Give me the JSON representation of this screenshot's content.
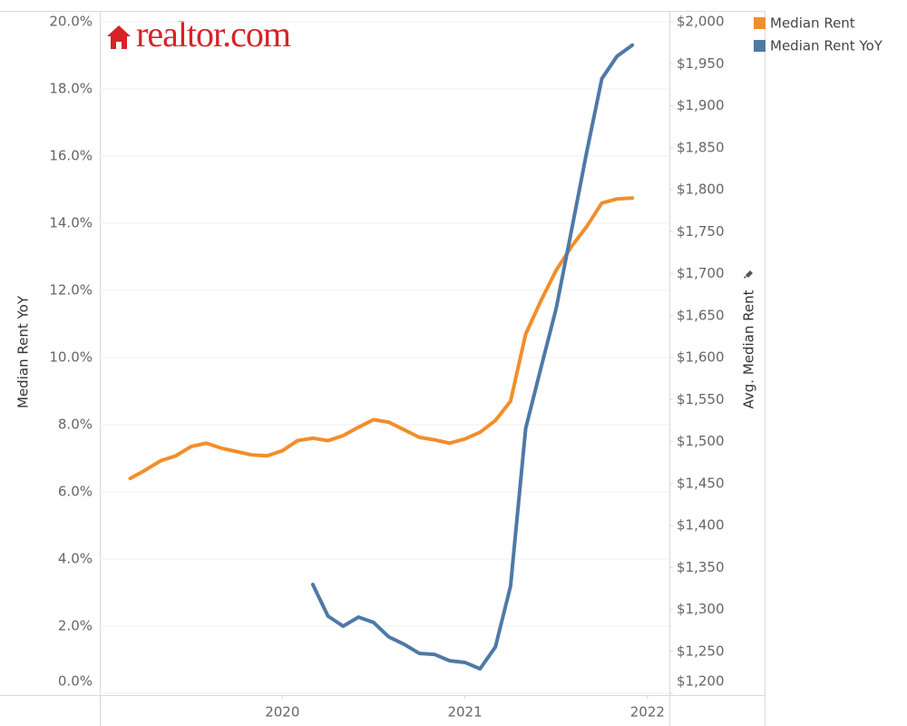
{
  "chart_data": {
    "type": "line",
    "logo": "realtor.com",
    "ylabel": "Median Rent YoY",
    "y2label": "Avg. Median Rent",
    "x": [
      2019.167,
      2019.25,
      2019.333,
      2019.417,
      2019.5,
      2019.583,
      2019.667,
      2019.75,
      2019.833,
      2019.917,
      2020.0,
      2020.083,
      2020.167,
      2020.25,
      2020.333,
      2020.417,
      2020.5,
      2020.583,
      2020.667,
      2020.75,
      2020.833,
      2020.917,
      2021.0,
      2021.083,
      2021.167,
      2021.25,
      2021.333,
      2021.417,
      2021.5,
      2021.583,
      2021.667,
      2021.75,
      2021.833,
      2021.917
    ],
    "series": [
      {
        "name": "Median Rent",
        "color": "#f28e2b",
        "axis": "y2",
        "values": [
          1456,
          1466,
          1477,
          1483,
          1494,
          1498,
          1492,
          1488,
          1484,
          1483,
          1489,
          1501,
          1504,
          1501,
          1507,
          1517,
          1526,
          1523,
          1514,
          1505,
          1502,
          1498,
          1503,
          1511,
          1525,
          1548,
          1628,
          1668,
          1704,
          1732,
          1756,
          1784,
          1789,
          1790
        ]
      },
      {
        "name": "Median Rent YoY",
        "color": "#4e79a7",
        "values": [
          null,
          null,
          null,
          null,
          null,
          null,
          null,
          null,
          null,
          null,
          null,
          null,
          3.24,
          2.3,
          2.0,
          2.27,
          2.11,
          1.68,
          1.46,
          1.19,
          1.16,
          0.97,
          0.92,
          0.73,
          1.38,
          3.19,
          7.89,
          9.7,
          11.46,
          13.76,
          16.11,
          18.3,
          18.97,
          19.3
        ]
      }
    ],
    "xlim": [
      2019,
      2022.12
    ],
    "xticks": [
      2020,
      2021,
      2022
    ],
    "ylim": [
      0,
      20.32
    ],
    "yticks": [
      {
        "value": 0,
        "label": "0.0%"
      },
      {
        "value": 2,
        "label": "2.0%"
      },
      {
        "value": 4,
        "label": "4.0%"
      },
      {
        "value": 6,
        "label": "6.0%"
      },
      {
        "value": 8,
        "label": "8.0%"
      },
      {
        "value": 10,
        "label": "10.0%"
      },
      {
        "value": 12,
        "label": "12.0%"
      },
      {
        "value": 14,
        "label": "14.0%"
      },
      {
        "value": 16,
        "label": "16.0%"
      },
      {
        "value": 18,
        "label": "18.0%"
      },
      {
        "value": 20,
        "label": "20.0%"
      }
    ],
    "y2lim": [
      1200,
      2013
    ],
    "y2ticks": [
      {
        "value": 1200,
        "label": "$1,200"
      },
      {
        "value": 1250,
        "label": "$1,250"
      },
      {
        "value": 1300,
        "label": "$1,300"
      },
      {
        "value": 1350,
        "label": "$1,350"
      },
      {
        "value": 1400,
        "label": "$1,400"
      },
      {
        "value": 1450,
        "label": "$1,450"
      },
      {
        "value": 1500,
        "label": "$1,500"
      },
      {
        "value": 1550,
        "label": "$1,550"
      },
      {
        "value": 1600,
        "label": "$1,600"
      },
      {
        "value": 1650,
        "label": "$1,650"
      },
      {
        "value": 1700,
        "label": "$1,700"
      },
      {
        "value": 1750,
        "label": "$1,750"
      },
      {
        "value": 1800,
        "label": "$1,800"
      },
      {
        "value": 1850,
        "label": "$1,850"
      },
      {
        "value": 1900,
        "label": "$1,900"
      },
      {
        "value": 1950,
        "label": "$1,950"
      },
      {
        "value": 2000,
        "label": "$2,000"
      }
    ],
    "grid": true,
    "legend": "top-right"
  }
}
